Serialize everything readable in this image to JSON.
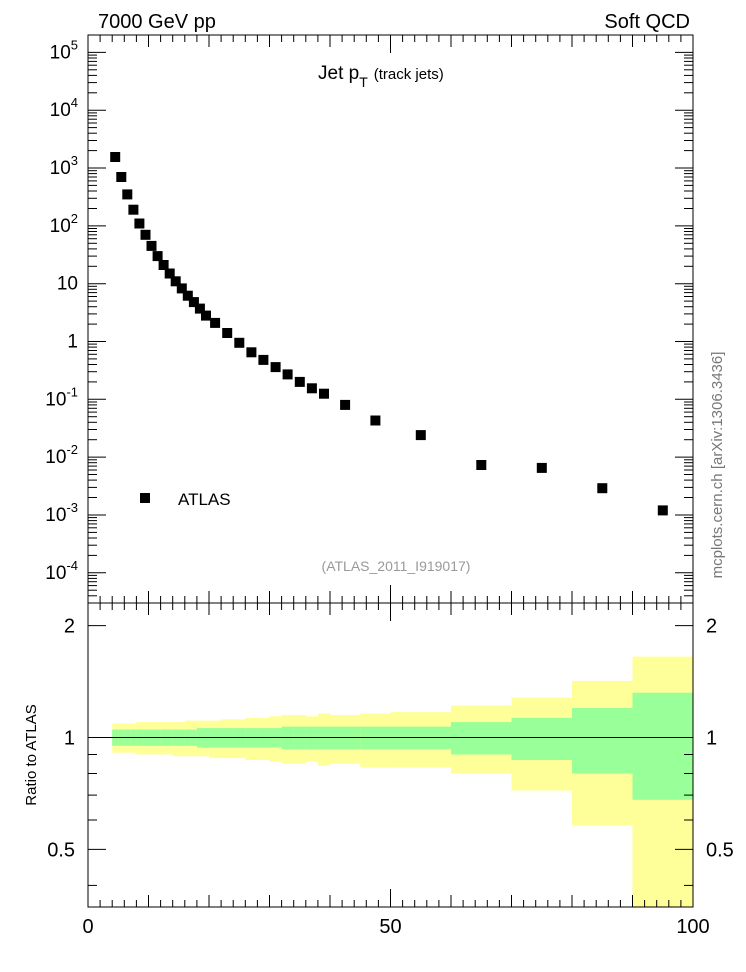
{
  "header": {
    "left": "7000 GeV pp",
    "right": "Soft QCD"
  },
  "side_label": "mcplots.cern.ch [arXiv:1306.3436]",
  "chart_data": [
    {
      "type": "scatter",
      "title": "Jet p",
      "title_sub": "T",
      "title_suffix": "(track jets)",
      "analysis_id": "(ATLAS_2011_I919017)",
      "xlim": [
        0,
        100
      ],
      "ylim": [
        3e-05,
        200000
      ],
      "yscale": "log",
      "legend": {
        "label": "ATLAS",
        "placement": "bottom-left"
      },
      "y_tick_labels": [
        "10^5",
        "10^4",
        "10^3",
        "10^2",
        "10",
        "1",
        "10^-1",
        "10^-2",
        "10^-3",
        "10^-4"
      ],
      "series": [
        {
          "name": "ATLAS",
          "x": [
            4.5,
            5.5,
            6.5,
            7.5,
            8.5,
            9.5,
            10.5,
            11.5,
            12.5,
            13.5,
            14.5,
            15.5,
            16.5,
            17.5,
            18.5,
            19.5,
            21,
            23,
            25,
            27,
            29,
            31,
            33,
            35,
            37,
            39,
            42.5,
            47.5,
            55,
            65,
            75,
            85,
            95
          ],
          "y": [
            1550,
            700,
            350,
            190,
            110,
            70,
            45,
            30,
            21,
            15,
            11,
            8.3,
            6.2,
            4.8,
            3.7,
            2.8,
            2.1,
            1.4,
            0.95,
            0.65,
            0.48,
            0.36,
            0.27,
            0.2,
            0.155,
            0.125,
            0.08,
            0.043,
            0.024,
            0.0073,
            0.0065,
            0.0029,
            0.0012
          ]
        }
      ]
    },
    {
      "type": "area",
      "ylabel": "Ratio to ATLAS",
      "xlim": [
        0,
        100
      ],
      "ylim": [
        0.35,
        2.3
      ],
      "x_ticks": [
        0,
        50,
        100
      ],
      "y_ticks": [
        0.5,
        1,
        2
      ],
      "reference_line": 1,
      "colors": {
        "inner_band": "#99ff99",
        "outer_band": "#ffff99"
      },
      "bins": [
        {
          "lo": 4,
          "hi": 5,
          "in_lo": 0.95,
          "in_hi": 1.05,
          "out_lo": 0.91,
          "out_hi": 1.09
        },
        {
          "lo": 5,
          "hi": 6,
          "in_lo": 0.95,
          "in_hi": 1.05,
          "out_lo": 0.91,
          "out_hi": 1.09
        },
        {
          "lo": 6,
          "hi": 7,
          "in_lo": 0.95,
          "in_hi": 1.05,
          "out_lo": 0.91,
          "out_hi": 1.09
        },
        {
          "lo": 7,
          "hi": 8,
          "in_lo": 0.95,
          "in_hi": 1.05,
          "out_lo": 0.91,
          "out_hi": 1.09
        },
        {
          "lo": 8,
          "hi": 9,
          "in_lo": 0.95,
          "in_hi": 1.05,
          "out_lo": 0.9,
          "out_hi": 1.1
        },
        {
          "lo": 9,
          "hi": 10,
          "in_lo": 0.95,
          "in_hi": 1.05,
          "out_lo": 0.9,
          "out_hi": 1.1
        },
        {
          "lo": 10,
          "hi": 12,
          "in_lo": 0.95,
          "in_hi": 1.05,
          "out_lo": 0.9,
          "out_hi": 1.1
        },
        {
          "lo": 12,
          "hi": 14,
          "in_lo": 0.95,
          "in_hi": 1.05,
          "out_lo": 0.9,
          "out_hi": 1.1
        },
        {
          "lo": 14,
          "hi": 16,
          "in_lo": 0.95,
          "in_hi": 1.05,
          "out_lo": 0.89,
          "out_hi": 1.1
        },
        {
          "lo": 16,
          "hi": 18,
          "in_lo": 0.95,
          "in_hi": 1.05,
          "out_lo": 0.89,
          "out_hi": 1.11
        },
        {
          "lo": 18,
          "hi": 20,
          "in_lo": 0.94,
          "in_hi": 1.06,
          "out_lo": 0.89,
          "out_hi": 1.11
        },
        {
          "lo": 20,
          "hi": 22,
          "in_lo": 0.94,
          "in_hi": 1.06,
          "out_lo": 0.88,
          "out_hi": 1.11
        },
        {
          "lo": 22,
          "hi": 24,
          "in_lo": 0.94,
          "in_hi": 1.06,
          "out_lo": 0.88,
          "out_hi": 1.12
        },
        {
          "lo": 24,
          "hi": 26,
          "in_lo": 0.94,
          "in_hi": 1.06,
          "out_lo": 0.88,
          "out_hi": 1.12
        },
        {
          "lo": 26,
          "hi": 28,
          "in_lo": 0.94,
          "in_hi": 1.06,
          "out_lo": 0.87,
          "out_hi": 1.13
        },
        {
          "lo": 28,
          "hi": 30,
          "in_lo": 0.94,
          "in_hi": 1.06,
          "out_lo": 0.87,
          "out_hi": 1.13
        },
        {
          "lo": 30,
          "hi": 32,
          "in_lo": 0.94,
          "in_hi": 1.06,
          "out_lo": 0.86,
          "out_hi": 1.14
        },
        {
          "lo": 32,
          "hi": 34,
          "in_lo": 0.93,
          "in_hi": 1.07,
          "out_lo": 0.85,
          "out_hi": 1.15
        },
        {
          "lo": 34,
          "hi": 36,
          "in_lo": 0.93,
          "in_hi": 1.07,
          "out_lo": 0.85,
          "out_hi": 1.15
        },
        {
          "lo": 36,
          "hi": 38,
          "in_lo": 0.93,
          "in_hi": 1.07,
          "out_lo": 0.86,
          "out_hi": 1.14
        },
        {
          "lo": 38,
          "hi": 40,
          "in_lo": 0.93,
          "in_hi": 1.07,
          "out_lo": 0.84,
          "out_hi": 1.16
        },
        {
          "lo": 40,
          "hi": 45,
          "in_lo": 0.93,
          "in_hi": 1.07,
          "out_lo": 0.85,
          "out_hi": 1.15
        },
        {
          "lo": 45,
          "hi": 50,
          "in_lo": 0.93,
          "in_hi": 1.07,
          "out_lo": 0.83,
          "out_hi": 1.16
        },
        {
          "lo": 50,
          "hi": 60,
          "in_lo": 0.93,
          "in_hi": 1.07,
          "out_lo": 0.83,
          "out_hi": 1.17
        },
        {
          "lo": 60,
          "hi": 70,
          "in_lo": 0.9,
          "in_hi": 1.1,
          "out_lo": 0.8,
          "out_hi": 1.22
        },
        {
          "lo": 70,
          "hi": 80,
          "in_lo": 0.87,
          "in_hi": 1.13,
          "out_lo": 0.72,
          "out_hi": 1.28
        },
        {
          "lo": 80,
          "hi": 90,
          "in_lo": 0.8,
          "in_hi": 1.2,
          "out_lo": 0.58,
          "out_hi": 1.42
        },
        {
          "lo": 90,
          "hi": 100,
          "in_lo": 0.68,
          "in_hi": 1.32,
          "out_lo": 0.35,
          "out_hi": 1.65
        }
      ]
    }
  ]
}
